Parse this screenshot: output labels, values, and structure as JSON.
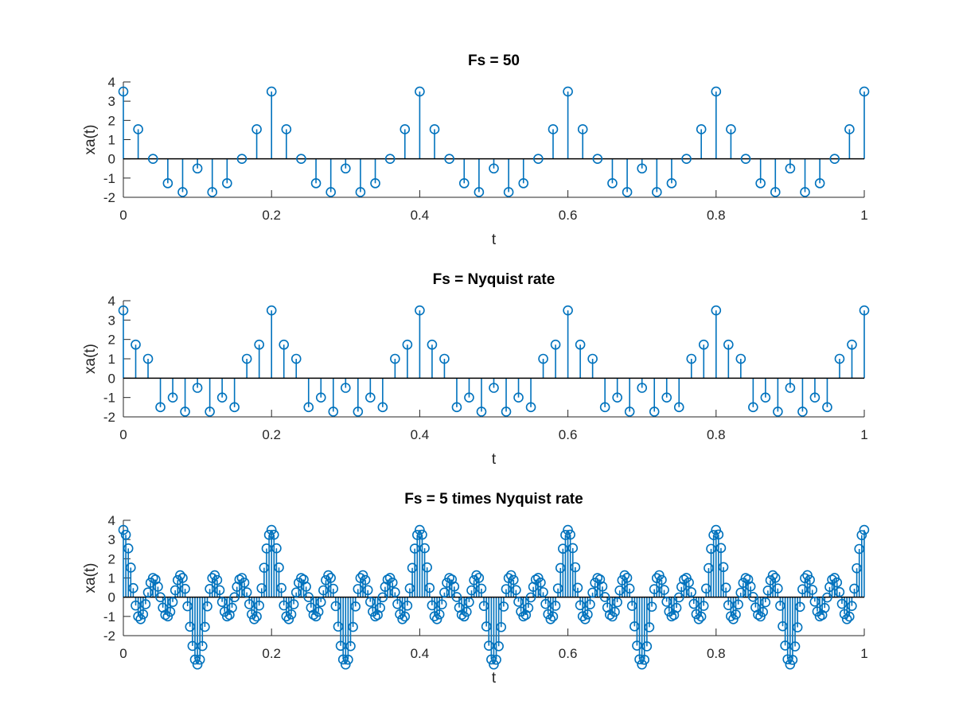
{
  "colors": {
    "series": "#0072bd",
    "axis": "#262626",
    "baseline": "#000000"
  },
  "chart_data": [
    {
      "type": "stem",
      "title": "Fs = 50",
      "xlabel": "t",
      "ylabel": "xa(t)",
      "xlim": [
        0,
        1
      ],
      "ylim": [
        -2,
        4
      ],
      "xticks": [
        "0",
        "0.2",
        "0.4",
        "0.6",
        "0.8",
        "1"
      ],
      "yticks": [
        "-2",
        "-1",
        "0",
        "1",
        "2",
        "3",
        "4"
      ],
      "grid": false,
      "period_pattern": {
        "x": [
          0,
          0.02,
          0.04,
          0.06,
          0.08,
          0.1,
          0.12,
          0.14,
          0.16,
          0.18
        ],
        "y": [
          3.5,
          1.54,
          0,
          -1.27,
          -1.73,
          -0.5,
          -1.73,
          -1.27,
          0,
          1.54
        ]
      },
      "period": 0.2,
      "x_end": 1
    },
    {
      "type": "stem",
      "title": "Fs = Nyquist rate",
      "xlabel": "t",
      "ylabel": "xa(t)",
      "xlim": [
        0,
        1
      ],
      "ylim": [
        -2,
        4
      ],
      "xticks": [
        "0",
        "0.2",
        "0.4",
        "0.6",
        "0.8",
        "1"
      ],
      "yticks": [
        "-2",
        "-1",
        "0",
        "1",
        "2",
        "3",
        "4"
      ],
      "grid": false,
      "period_pattern": {
        "x": [
          0,
          0.01667,
          0.03333,
          0.05,
          0.06667,
          0.08333,
          0.1,
          0.11667,
          0.13333,
          0.15,
          0.16667,
          0.18333
        ],
        "y": [
          3.5,
          1.73,
          1.0,
          -1.5,
          -1.0,
          -1.73,
          -0.5,
          -1.73,
          -1.0,
          -1.5,
          1.0,
          1.73
        ]
      },
      "period": 0.2,
      "x_end": 1
    },
    {
      "type": "stem",
      "title": "Fs = 5 times Nyquist rate",
      "xlabel": "t",
      "ylabel": "xa(t)",
      "xlim": [
        0,
        1
      ],
      "ylim": [
        -2,
        4
      ],
      "xticks": [
        "0",
        "0.2",
        "0.4",
        "0.6",
        "0.8",
        "1"
      ],
      "yticks": [
        "-2",
        "-1",
        "0",
        "1",
        "2",
        "3",
        "4"
      ],
      "grid": false,
      "signal": "cos(2*pi*5*t) + cos(2*pi*15*t) + 1.5*cos(2*pi*25*t)",
      "sample_spacing": 0.003333,
      "x_end": 1
    }
  ]
}
